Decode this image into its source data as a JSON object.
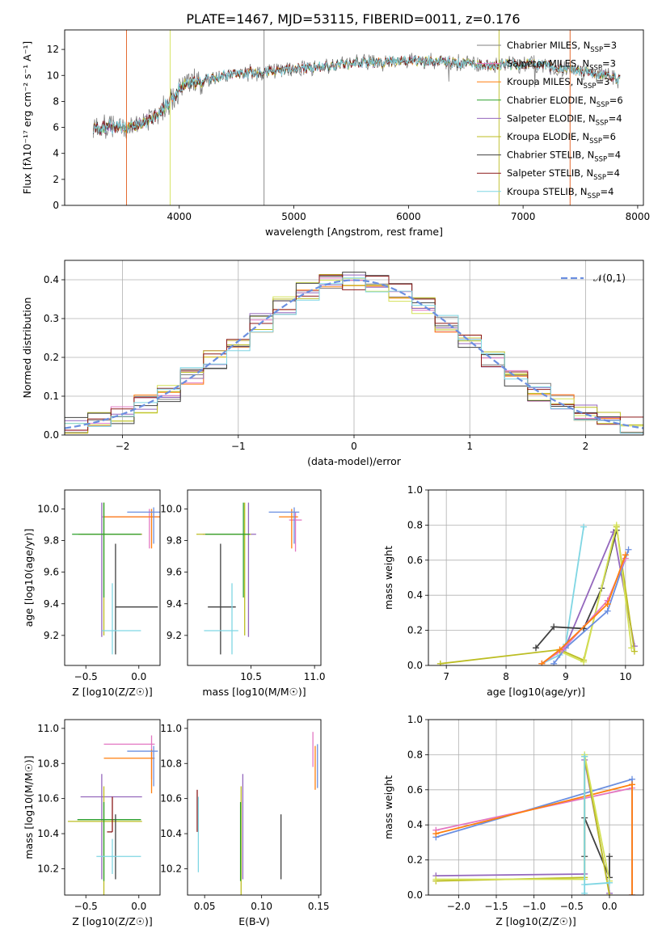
{
  "figure": {
    "title": "PLATE=1467, MJD=53115, FIBERID=0011, z=0.176"
  },
  "chart_data": [
    {
      "id": "spectrum",
      "type": "line",
      "xlabel": "wavelength [Angstrom, rest frame]",
      "ylabel": "Flux [fλ10⁻¹⁷ erg cm⁻² s⁻¹ A⁻¹]",
      "xlim": [
        3000,
        8050
      ],
      "ylim": [
        0,
        13.5
      ],
      "xticks": [
        4000,
        5000,
        6000,
        7000,
        8000
      ],
      "yticks": [
        0,
        2,
        4,
        6,
        8,
        10,
        12
      ],
      "grid": false,
      "legend_position": "right",
      "continuum": {
        "x": [
          3250,
          3400,
          3550,
          3700,
          3850,
          3950,
          4050,
          4200,
          4400,
          4600,
          4800,
          5000,
          5200,
          5400,
          5600,
          5800,
          6000,
          6200,
          6400,
          6600,
          6800,
          7000,
          7200,
          7400,
          7600,
          7850
        ],
        "y": [
          5.9,
          6.1,
          6.0,
          6.4,
          7.3,
          8.4,
          9.3,
          9.6,
          10.0,
          10.2,
          10.3,
          10.5,
          10.6,
          10.8,
          11.0,
          11.0,
          11.2,
          11.1,
          11.0,
          10.8,
          10.8,
          10.9,
          10.7,
          10.5,
          10.2,
          9.7
        ]
      },
      "series": [
        {
          "name": "Chabrier MILES, N_SSP=3",
          "color": "#7f7f7f",
          "lw": 0.8
        },
        {
          "name": "Salpeter MILES, N_SSP=3",
          "color": "#e377c2",
          "lw": 0.8
        },
        {
          "name": "Kroupa MILES, N_SSP=3",
          "color": "#ff7f0e",
          "lw": 0.8
        },
        {
          "name": "Chabrier ELODIE, N_SSP=6",
          "color": "#2ca02c",
          "lw": 0.8
        },
        {
          "name": "Salpeter ELODIE, N_SSP=4",
          "color": "#9467bd",
          "lw": 0.8
        },
        {
          "name": "Kroupa ELODIE, N_SSP=6",
          "color": "#bcbd22",
          "lw": 0.8
        },
        {
          "name": "Chabrier STELIB, N_SSP=4",
          "color": "#404040",
          "lw": 0.8
        },
        {
          "name": "Salpeter STELIB, N_SSP=4",
          "color": "#8c1a1a",
          "lw": 0.8
        },
        {
          "name": "Kroupa STELIB, N_SSP=4",
          "color": "#7fd6e3",
          "lw": 0.8
        }
      ]
    },
    {
      "id": "residuals",
      "type": "step",
      "xlabel": "(data-model)/error",
      "ylabel": "Normed distribution",
      "xlim": [
        -2.5,
        2.5
      ],
      "ylim": [
        0,
        0.45
      ],
      "xticks": [
        -2,
        -1,
        0,
        1,
        2
      ],
      "yticks": [
        0.0,
        0.1,
        0.2,
        0.3,
        0.4
      ],
      "grid": true,
      "legend_position": "top-right",
      "reference": {
        "name": "𝒩(0,1)",
        "color": "#6b8fe0",
        "mean": 0,
        "sigma": 1
      },
      "bin_edges": [
        -2.5,
        -2.3,
        -2.1,
        -1.9,
        -1.7,
        -1.5,
        -1.3,
        -1.1,
        -0.9,
        -0.7,
        -0.5,
        -0.3,
        -0.1,
        0.1,
        0.3,
        0.5,
        0.7,
        0.9,
        1.1,
        1.3,
        1.5,
        1.7,
        1.9,
        2.1,
        2.3,
        2.5
      ],
      "hist_colors": [
        "#7f7f7f",
        "#e377c2",
        "#ff7f0e",
        "#d4e157",
        "#9467bd",
        "#bcbd22",
        "#404040",
        "#8c1a1a",
        "#7fd6e3"
      ]
    },
    {
      "id": "age-vs-Z",
      "type": "errorbar",
      "xlabel": "Z [log10(Z/Z☉)]",
      "ylabel": "age  [log10(age/yr)]",
      "xlim": [
        -0.7,
        0.2
      ],
      "ylim": [
        9.01,
        10.12
      ],
      "xticks": [
        -0.5,
        0.0
      ],
      "yticks": [
        9.2,
        9.4,
        9.6,
        9.8,
        10.0
      ],
      "points": [
        {
          "x": 0.1,
          "y": 9.95,
          "xlo": 0.45,
          "xhi": 0.1,
          "ylo": 0.2,
          "yhi": 0.05,
          "color": "#e377c2"
        },
        {
          "x": 0.12,
          "y": 9.95,
          "xlo": 0.45,
          "xhi": 0.08,
          "ylo": 0.2,
          "yhi": 0.05,
          "color": "#ff7f0e"
        },
        {
          "x": 0.14,
          "y": 9.98,
          "xlo": 0.25,
          "xhi": 0.06,
          "ylo": 0.2,
          "yhi": 0.03,
          "color": "#6b8fe0"
        },
        {
          "x": -0.35,
          "y": 9.84,
          "xlo": 0.2,
          "xhi": 0.38,
          "ylo": 0.65,
          "yhi": 0.2,
          "color": "#9467bd"
        },
        {
          "x": -0.33,
          "y": 9.84,
          "xlo": 0.24,
          "xhi": 0.36,
          "ylo": 0.64,
          "yhi": 0.2,
          "color": "#bcbd22"
        },
        {
          "x": -0.33,
          "y": 9.84,
          "xlo": 0.3,
          "xhi": 0.35,
          "ylo": 0.4,
          "yhi": 0.2,
          "color": "#2ca02c"
        },
        {
          "x": -0.22,
          "y": 9.38,
          "xlo": 0.0,
          "xhi": 0.4,
          "ylo": 0.3,
          "yhi": 0.4,
          "color": "#404040"
        },
        {
          "x": -0.25,
          "y": 9.23,
          "xlo": 0.1,
          "xhi": 0.27,
          "ylo": 0.15,
          "yhi": 0.3,
          "color": "#7fd6e3"
        }
      ]
    },
    {
      "id": "age-vs-mass",
      "type": "errorbar",
      "xlabel": "mass [log10(M/M☉)]",
      "ylabel": "",
      "xlim": [
        10.0,
        11.05
      ],
      "ylim": [
        9.01,
        10.12
      ],
      "xticks": [
        10.5,
        11.0
      ],
      "yticks": [
        9.2,
        9.4,
        9.6,
        9.8,
        10.0
      ],
      "points": [
        {
          "x": 10.85,
          "y": 9.93,
          "xlo": 0.05,
          "xhi": 0.05,
          "ylo": 0.2,
          "yhi": 0.05,
          "color": "#e377c2"
        },
        {
          "x": 10.82,
          "y": 9.95,
          "xlo": 0.1,
          "xhi": 0.05,
          "ylo": 0.2,
          "yhi": 0.05,
          "color": "#ff7f0e"
        },
        {
          "x": 10.84,
          "y": 9.98,
          "xlo": 0.2,
          "xhi": 0.04,
          "ylo": 0.2,
          "yhi": 0.03,
          "color": "#6b8fe0"
        },
        {
          "x": 10.48,
          "y": 9.84,
          "xlo": 0.36,
          "xhi": 0.06,
          "ylo": 0.65,
          "yhi": 0.2,
          "color": "#9467bd"
        },
        {
          "x": 10.45,
          "y": 9.84,
          "xlo": 0.38,
          "xhi": 0.05,
          "ylo": 0.64,
          "yhi": 0.2,
          "color": "#bcbd22"
        },
        {
          "x": 10.44,
          "y": 9.84,
          "xlo": 0.3,
          "xhi": 0.05,
          "ylo": 0.4,
          "yhi": 0.2,
          "color": "#2ca02c"
        },
        {
          "x": 10.26,
          "y": 9.38,
          "xlo": 0.1,
          "xhi": 0.12,
          "ylo": 0.3,
          "yhi": 0.4,
          "color": "#404040"
        },
        {
          "x": 10.35,
          "y": 9.23,
          "xlo": 0.22,
          "xhi": 0.05,
          "ylo": 0.15,
          "yhi": 0.3,
          "color": "#7fd6e3"
        }
      ]
    },
    {
      "id": "weight-vs-age",
      "type": "line",
      "xlabel": "age  [log10(age/yr)]",
      "ylabel": "mass weight",
      "xlim": [
        6.7,
        10.3
      ],
      "ylim": [
        0,
        1.0
      ],
      "xticks": [
        7,
        8,
        9,
        10
      ],
      "yticks": [
        0.0,
        0.2,
        0.4,
        0.6,
        0.8,
        1.0
      ],
      "grid": true,
      "series": [
        {
          "color": "#7fd6e3",
          "x": [
            8.6,
            8.9,
            9.0,
            9.3
          ],
          "y": [
            0.01,
            0.06,
            0.12,
            0.79
          ]
        },
        {
          "color": "#9467bd",
          "x": [
            8.6,
            9.0,
            9.8,
            10.15
          ],
          "y": [
            0.01,
            0.11,
            0.76,
            0.11
          ]
        },
        {
          "color": "#404040",
          "x": [
            8.5,
            8.8,
            9.3,
            9.6,
            9.85
          ],
          "y": [
            0.1,
            0.22,
            0.21,
            0.44,
            0.77
          ]
        },
        {
          "color": "#bcbd22",
          "x": [
            6.9,
            8.9,
            9.3,
            9.85,
            10.15
          ],
          "y": [
            0.01,
            0.09,
            0.03,
            0.79,
            0.08
          ]
        },
        {
          "color": "#d4e157",
          "x": [
            8.9,
            9.3,
            9.85,
            10.1
          ],
          "y": [
            0.08,
            0.02,
            0.8,
            0.1
          ]
        },
        {
          "color": "#6b8fe0",
          "x": [
            8.8,
            9.0,
            9.7,
            10.05
          ],
          "y": [
            0.01,
            0.1,
            0.31,
            0.66
          ]
        },
        {
          "color": "#e377c2",
          "x": [
            8.6,
            8.95,
            9.7,
            10.0
          ],
          "y": [
            0.01,
            0.09,
            0.37,
            0.61
          ]
        },
        {
          "color": "#ff7f0e",
          "x": [
            8.6,
            8.9,
            9.7,
            10.0
          ],
          "y": [
            0.01,
            0.09,
            0.35,
            0.63
          ]
        }
      ]
    },
    {
      "id": "mass-vs-Z",
      "type": "errorbar",
      "xlabel": "Z [log10(Z/Z☉)]",
      "ylabel": "mass [log10(M/M☉)]",
      "xlim": [
        -0.7,
        0.2
      ],
      "ylim": [
        10.05,
        11.05
      ],
      "xticks": [
        -0.5,
        0.0
      ],
      "yticks": [
        10.2,
        10.4,
        10.6,
        10.8,
        11.0
      ],
      "points": [
        {
          "x": 0.12,
          "y": 10.91,
          "xlo": 0.45,
          "xhi": 0.03,
          "ylo": 0.2,
          "yhi": 0.05,
          "color": "#e377c2"
        },
        {
          "x": 0.12,
          "y": 10.83,
          "xlo": 0.45,
          "xhi": 0.03,
          "ylo": 0.2,
          "yhi": 0.05,
          "color": "#ff7f0e"
        },
        {
          "x": 0.14,
          "y": 10.87,
          "xlo": 0.25,
          "xhi": 0.04,
          "ylo": 0.2,
          "yhi": 0.03,
          "color": "#6b8fe0"
        },
        {
          "x": -0.35,
          "y": 10.61,
          "xlo": 0.2,
          "xhi": 0.38,
          "ylo": 0.47,
          "yhi": 0.13,
          "color": "#9467bd"
        },
        {
          "x": -0.33,
          "y": 10.47,
          "xlo": 0.34,
          "xhi": 0.36,
          "ylo": 0.44,
          "yhi": 0.2,
          "color": "#bcbd22"
        },
        {
          "x": -0.33,
          "y": 10.48,
          "xlo": 0.25,
          "xhi": 0.35,
          "ylo": 0.35,
          "yhi": 0.1,
          "color": "#2ca02c"
        },
        {
          "x": -0.22,
          "y": 10.48,
          "xlo": 0.0,
          "xhi": 0.0,
          "ylo": 0.34,
          "yhi": 0.03,
          "color": "#404040"
        },
        {
          "x": -0.25,
          "y": 10.41,
          "xlo": 0.05,
          "xhi": 0.0,
          "ylo": 0.0,
          "yhi": 0.2,
          "color": "#8c1a1a"
        },
        {
          "x": -0.25,
          "y": 10.27,
          "xlo": 0.15,
          "xhi": 0.27,
          "ylo": 0.1,
          "yhi": 0.1,
          "color": "#7fd6e3"
        }
      ]
    },
    {
      "id": "mass-vs-ebv",
      "type": "errorbar",
      "xlabel": "E(B-V)",
      "ylabel": "",
      "xlim": [
        0.035,
        0.152
      ],
      "ylim": [
        10.05,
        11.05
      ],
      "xticks": [
        0.05,
        0.1,
        0.15
      ],
      "yticks": [
        10.2,
        10.4,
        10.6,
        10.8,
        11.0
      ],
      "points": [
        {
          "x": 0.145,
          "y": 10.92,
          "ylo": 0.14,
          "yhi": 0.06,
          "color": "#e377c2"
        },
        {
          "x": 0.147,
          "y": 10.83,
          "ylo": 0.18,
          "yhi": 0.07,
          "color": "#ff7f0e"
        },
        {
          "x": 0.149,
          "y": 10.81,
          "ylo": 0.15,
          "yhi": 0.1,
          "color": "#6b8fe0"
        },
        {
          "x": 0.0835,
          "y": 10.61,
          "ylo": 0.47,
          "yhi": 0.13,
          "color": "#9467bd"
        },
        {
          "x": 0.082,
          "y": 10.47,
          "ylo": 0.44,
          "yhi": 0.2,
          "color": "#bcbd22"
        },
        {
          "x": 0.0815,
          "y": 10.48,
          "ylo": 0.35,
          "yhi": 0.1,
          "color": "#2ca02c"
        },
        {
          "x": 0.117,
          "y": 10.32,
          "ylo": 0.18,
          "yhi": 0.19,
          "color": "#404040"
        },
        {
          "x": 0.0435,
          "y": 10.41,
          "ylo": 0.0,
          "yhi": 0.24,
          "color": "#8c1a1a"
        },
        {
          "x": 0.0445,
          "y": 10.45,
          "ylo": 0.27,
          "yhi": 0.16,
          "color": "#7fd6e3"
        }
      ]
    },
    {
      "id": "weight-vs-Z",
      "type": "line",
      "xlabel": "Z [log10(Z/Z☉)]",
      "ylabel": "mass weight",
      "xlim": [
        -2.4,
        0.45
      ],
      "ylim": [
        0,
        1.0
      ],
      "xticks": [
        -2.0,
        -1.5,
        -1.0,
        -0.5,
        0.0
      ],
      "yticks": [
        0.0,
        0.2,
        0.4,
        0.6,
        0.8,
        1.0
      ],
      "grid": true,
      "series": [
        {
          "color": "#6b8fe0",
          "x": [
            -2.3,
            0.3,
            0.3
          ],
          "y": [
            0.33,
            0.66,
            0.0
          ]
        },
        {
          "color": "#e377c2",
          "x": [
            -2.3,
            0.3,
            0.3
          ],
          "y": [
            0.37,
            0.61,
            0.0
          ]
        },
        {
          "color": "#ff7f0e",
          "x": [
            -2.3,
            0.3,
            0.3
          ],
          "y": [
            0.35,
            0.63,
            0.0
          ]
        },
        {
          "color": "#9467bd",
          "x": [
            -2.3,
            -0.33,
            -0.33,
            0.0
          ],
          "y": [
            0.11,
            0.12,
            0.77,
            0.01
          ]
        },
        {
          "color": "#404040",
          "x": [
            -0.33,
            -0.33,
            0.0,
            0.0
          ],
          "y": [
            0.22,
            0.44,
            0.1,
            0.22
          ]
        },
        {
          "color": "#bcbd22",
          "x": [
            -2.3,
            -0.33,
            -0.33,
            0.0
          ],
          "y": [
            0.08,
            0.1,
            0.79,
            0.0
          ]
        },
        {
          "color": "#d4e157",
          "x": [
            -2.3,
            -0.33,
            -0.33,
            0.0
          ],
          "y": [
            0.09,
            0.09,
            0.8,
            0.08
          ]
        },
        {
          "color": "#7fd6e3",
          "x": [
            -0.33,
            -0.33,
            -0.33,
            0.0
          ],
          "y": [
            0.01,
            0.79,
            0.06,
            0.07
          ]
        }
      ]
    }
  ]
}
